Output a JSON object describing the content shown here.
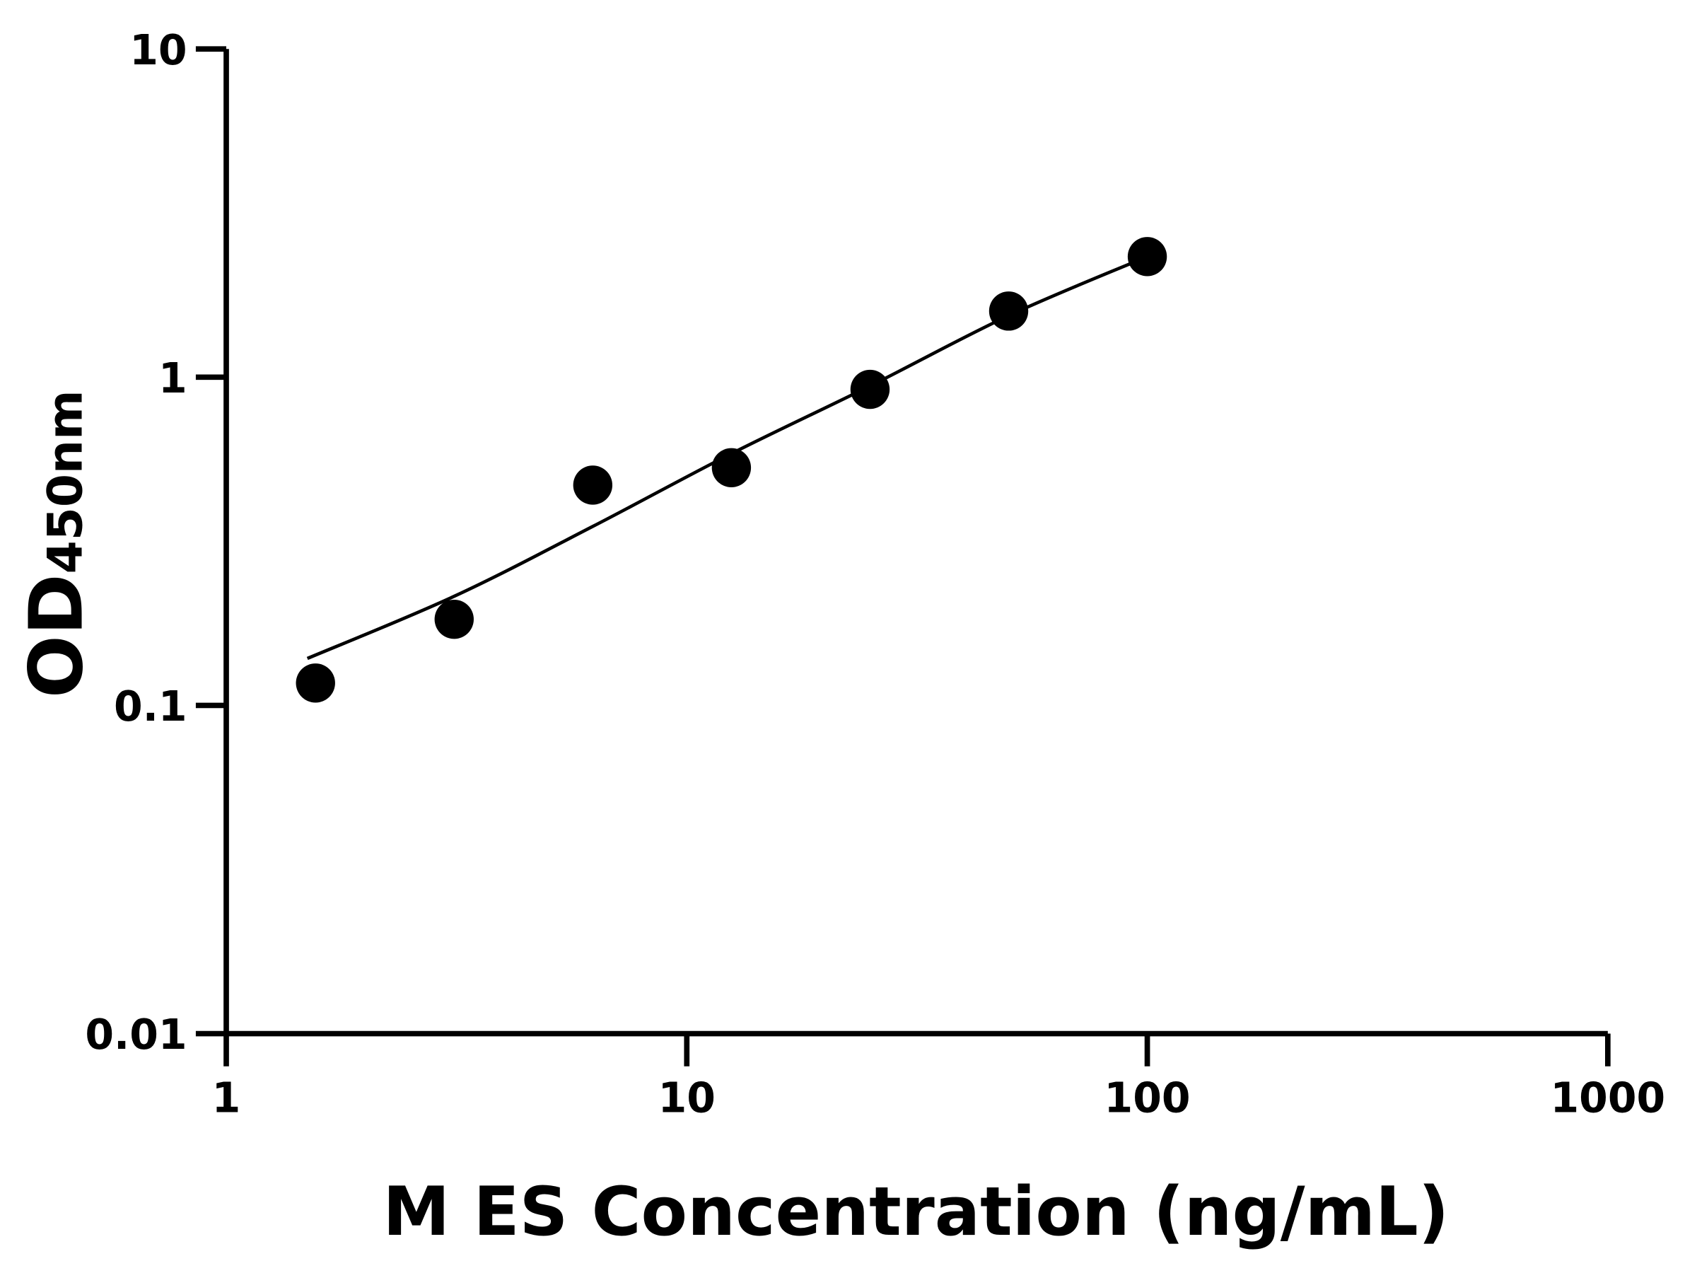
{
  "chart_data": {
    "type": "scatter",
    "title": "",
    "xlabel": "M ES Concentration (ng/mL)",
    "ylabel_main": "OD",
    "ylabel_sub": "450nm",
    "xscale": "log",
    "yscale": "log",
    "xlim": [
      1,
      1000
    ],
    "ylim": [
      0.01,
      10
    ],
    "grid": false,
    "x_ticks": [
      1,
      10,
      100,
      1000
    ],
    "x_tick_labels": [
      "1",
      "10",
      "100",
      "1000"
    ],
    "y_ticks": [
      0.01,
      0.1,
      1,
      10
    ],
    "y_tick_labels": [
      "0.01",
      "0.1",
      "1",
      "10"
    ],
    "colors": {
      "points": "#000000",
      "curve": "#000000",
      "axes": "#000000"
    },
    "points": {
      "x": [
        1.5625,
        3.125,
        6.25,
        12.5,
        25,
        50,
        100
      ],
      "y": [
        0.117,
        0.183,
        0.469,
        0.53,
        0.918,
        1.59,
        2.33
      ]
    },
    "fit_curve": {
      "x": [
        1.5,
        3.125,
        6.25,
        12.5,
        25,
        50,
        100
      ],
      "y": [
        0.139,
        0.215,
        0.351,
        0.585,
        0.94,
        1.54,
        2.33
      ]
    }
  }
}
